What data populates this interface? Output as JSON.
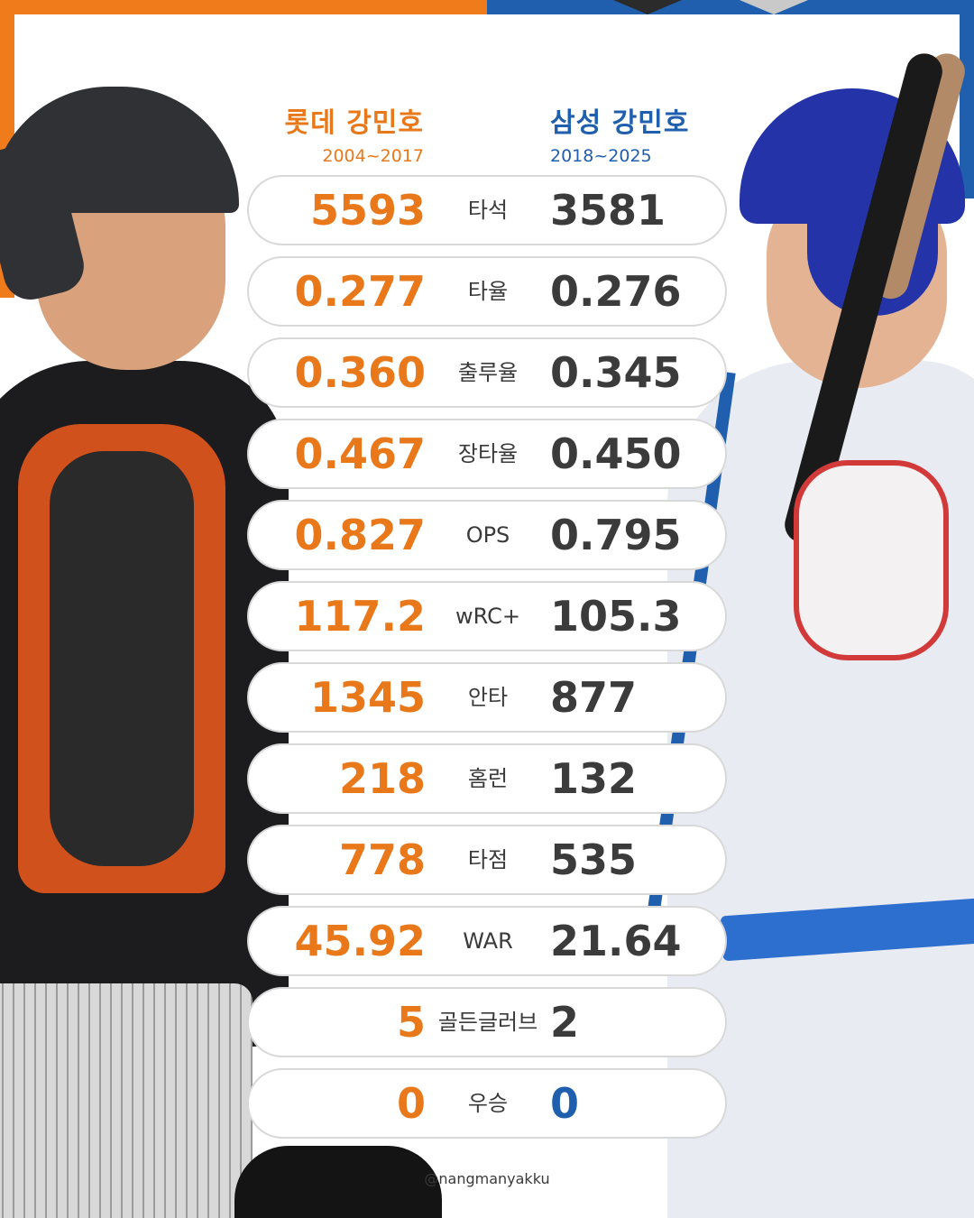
{
  "left_player": {
    "team_name": "롯데 강민호",
    "years": "2004~2017",
    "accent_color": "#e8781a"
  },
  "right_player": {
    "team_name": "삼성 강민호",
    "years": "2018~2025",
    "accent_color": "#1f5fae"
  },
  "stats": [
    {
      "label": "타석",
      "left": "5593",
      "right": "3581"
    },
    {
      "label": "타율",
      "left": "0.277",
      "right": "0.276"
    },
    {
      "label": "출루율",
      "left": "0.360",
      "right": "0.345"
    },
    {
      "label": "장타율",
      "left": "0.467",
      "right": "0.450"
    },
    {
      "label": "OPS",
      "left": "0.827",
      "right": "0.795"
    },
    {
      "label": "wRC+",
      "left": "117.2",
      "right": "105.3"
    },
    {
      "label": "안타",
      "left": "1345",
      "right": "877"
    },
    {
      "label": "홈런",
      "left": "218",
      "right": "132"
    },
    {
      "label": "타점",
      "left": "778",
      "right": "535"
    },
    {
      "label": "WAR",
      "left": "45.92",
      "right": "21.64"
    },
    {
      "label": "골든글러브",
      "left": "5",
      "right": "2"
    },
    {
      "label": "우승",
      "left": "0",
      "right": "0"
    }
  ],
  "footer_handle": "@nangmanyakku"
}
